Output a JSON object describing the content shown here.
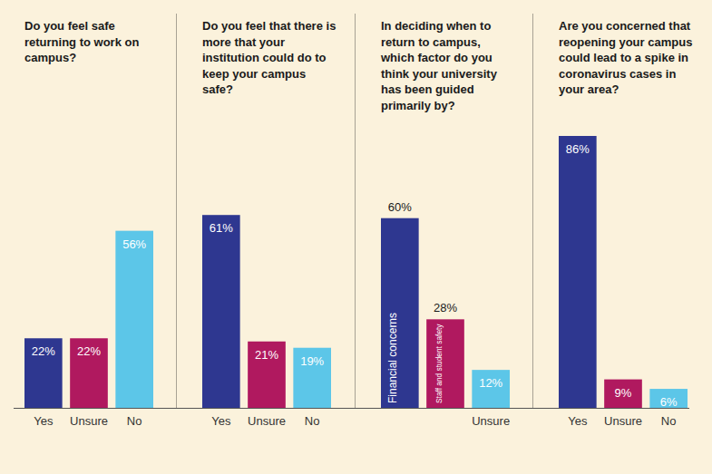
{
  "chart_data": [
    {
      "type": "bar",
      "title": "Do you feel safe returning to work on campus?",
      "categories": [
        "Yes",
        "Unsure",
        "No"
      ],
      "values": [
        22,
        22,
        56
      ],
      "value_labels": [
        "22%",
        "22%",
        "56%"
      ],
      "colors": [
        "#2e3790",
        "#b0195f",
        "#5cc6e8"
      ],
      "data_labels": true,
      "tick_labels": "x"
    },
    {
      "type": "bar",
      "title": "Do you feel that there is more that your institution could do to keep your campus safe?",
      "categories": [
        "Yes",
        "Unsure",
        "No"
      ],
      "values": [
        61,
        21,
        19
      ],
      "value_labels": [
        "61%",
        "21%",
        "19%"
      ],
      "colors": [
        "#2e3790",
        "#b0195f",
        "#5cc6e8"
      ],
      "data_labels": true,
      "tick_labels": "x"
    },
    {
      "type": "bar",
      "title": "In deciding when to return to campus, which factor do you think your university has been guided primarily by?",
      "categories": [
        "Financial concerns",
        "Staff and student safety",
        "Unsure"
      ],
      "values": [
        60,
        28,
        12
      ],
      "value_labels": [
        "60%",
        "28%",
        "12%"
      ],
      "colors": [
        "#2e3790",
        "#b0195f",
        "#5cc6e8"
      ],
      "data_labels": true,
      "tick_labels": "x"
    },
    {
      "type": "bar",
      "title": "Are you concerned that reopening your campus could lead to a spike in coronavirus cases in your area?",
      "categories": [
        "Yes",
        "Unsure",
        "No"
      ],
      "values": [
        86,
        9,
        6
      ],
      "value_labels": [
        "86%",
        "9%",
        "6%"
      ],
      "colors": [
        "#2e3790",
        "#b0195f",
        "#5cc6e8"
      ],
      "data_labels": true,
      "tick_labels": "x"
    }
  ]
}
